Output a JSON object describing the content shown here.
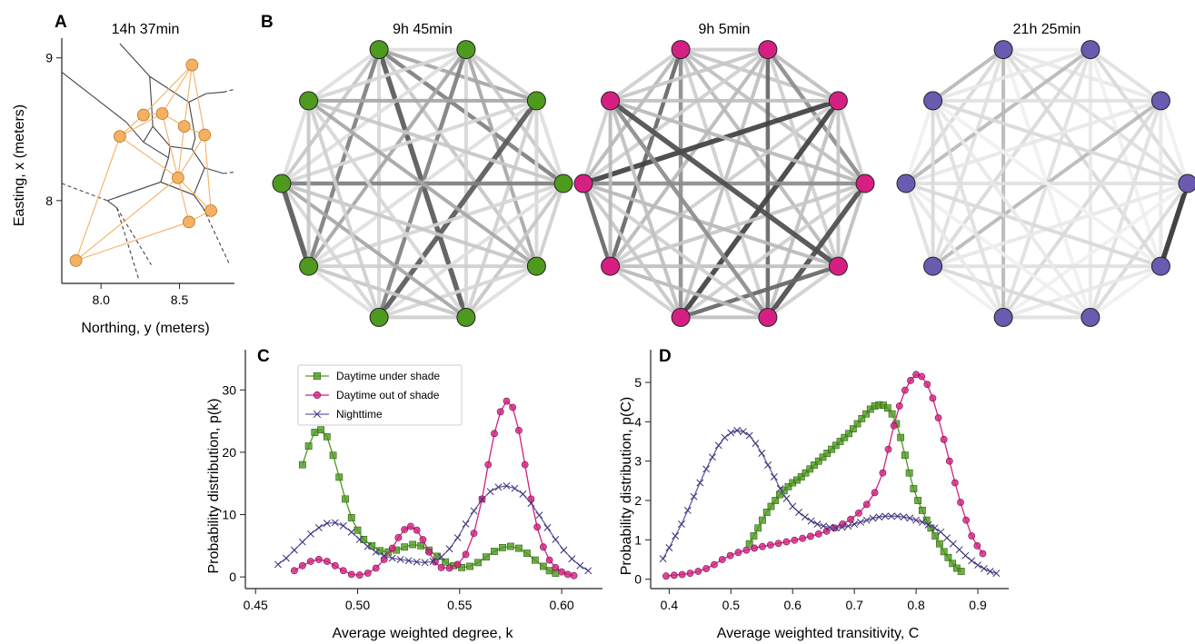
{
  "panel_letters": {
    "a": "A",
    "b": "B",
    "c": "C",
    "d": "D"
  },
  "colors": {
    "shade": "#4e9a1f",
    "sun": "#d61f82",
    "night": "#6a5bb0",
    "map_node": "#f5b062",
    "map_edge": "#f5b062"
  },
  "icons": {
    "shade_marker": "square",
    "sun_marker": "circle",
    "night_marker": "x"
  },
  "chart_data": [
    {
      "type": "scatter",
      "panel": "A",
      "title": "14h 37min",
      "xlabel": "Northing, y (meters)",
      "ylabel": "Easting, x (meters)",
      "xlim": [
        7.75,
        8.85
      ],
      "ylim": [
        7.42,
        9.1
      ],
      "xticks": [
        "8.0",
        "8.5"
      ],
      "yticks": [
        "8",
        "9"
      ],
      "points": [
        {
          "x": 8.58,
          "y": 8.95
        },
        {
          "x": 8.27,
          "y": 8.6
        },
        {
          "x": 8.39,
          "y": 8.61
        },
        {
          "x": 8.12,
          "y": 8.45
        },
        {
          "x": 8.53,
          "y": 8.52
        },
        {
          "x": 8.66,
          "y": 8.46
        },
        {
          "x": 8.49,
          "y": 8.16
        },
        {
          "x": 8.7,
          "y": 7.93
        },
        {
          "x": 8.56,
          "y": 7.85
        },
        {
          "x": 7.84,
          "y": 7.58
        }
      ],
      "delaunay_edges": [
        [
          0,
          1
        ],
        [
          0,
          2
        ],
        [
          0,
          4
        ],
        [
          0,
          5
        ],
        [
          1,
          2
        ],
        [
          1,
          3
        ],
        [
          2,
          3
        ],
        [
          2,
          4
        ],
        [
          3,
          6
        ],
        [
          3,
          9
        ],
        [
          2,
          6
        ],
        [
          4,
          6
        ],
        [
          4,
          5
        ],
        [
          5,
          6
        ],
        [
          5,
          7
        ],
        [
          6,
          7
        ],
        [
          6,
          8
        ],
        [
          7,
          8
        ],
        [
          8,
          9
        ],
        [
          6,
          9
        ]
      ],
      "voronoi_solid": [
        [
          [
            8.12,
            9.1
          ],
          [
            8.31,
            8.87
          ]
        ],
        [
          [
            8.31,
            8.87
          ],
          [
            8.56,
            8.69
          ]
        ],
        [
          [
            8.56,
            8.69
          ],
          [
            8.67,
            8.75
          ]
        ],
        [
          [
            8.31,
            8.87
          ],
          [
            8.33,
            8.52
          ]
        ],
        [
          [
            7.75,
            8.9
          ],
          [
            8.16,
            8.55
          ]
        ],
        [
          [
            8.16,
            8.55
          ],
          [
            8.27,
            8.41
          ]
        ],
        [
          [
            8.27,
            8.41
          ],
          [
            8.33,
            8.52
          ]
        ],
        [
          [
            8.33,
            8.52
          ],
          [
            8.44,
            8.38
          ]
        ],
        [
          [
            8.27,
            8.41
          ],
          [
            8.43,
            8.3
          ]
        ],
        [
          [
            8.43,
            8.3
          ],
          [
            8.44,
            8.38
          ]
        ],
        [
          [
            8.44,
            8.38
          ],
          [
            8.58,
            8.36
          ]
        ],
        [
          [
            8.58,
            8.36
          ],
          [
            8.6,
            8.44
          ]
        ],
        [
          [
            8.6,
            8.44
          ],
          [
            8.56,
            8.69
          ]
        ],
        [
          [
            8.58,
            8.36
          ],
          [
            8.66,
            8.23
          ]
        ],
        [
          [
            8.43,
            8.3
          ],
          [
            8.38,
            8.13
          ]
        ],
        [
          [
            8.38,
            8.13
          ],
          [
            8.04,
            8.0
          ]
        ],
        [
          [
            8.38,
            8.13
          ],
          [
            8.59,
            8.04
          ]
        ],
        [
          [
            8.59,
            8.04
          ],
          [
            8.66,
            8.23
          ]
        ],
        [
          [
            8.66,
            8.23
          ],
          [
            8.78,
            8.19
          ]
        ],
        [
          [
            8.59,
            8.04
          ],
          [
            8.65,
            7.95
          ]
        ],
        [
          [
            8.04,
            8.0
          ],
          [
            8.1,
            7.95
          ]
        ],
        [
          [
            8.67,
            8.75
          ],
          [
            8.78,
            8.76
          ]
        ]
      ],
      "voronoi_dashed": [
        [
          [
            7.75,
            8.12
          ],
          [
            8.04,
            8.0
          ]
        ],
        [
          [
            8.1,
            7.95
          ],
          [
            8.32,
            7.55
          ]
        ],
        [
          [
            8.1,
            7.95
          ],
          [
            8.24,
            7.45
          ]
        ],
        [
          [
            8.65,
            7.95
          ],
          [
            8.82,
            7.55
          ]
        ],
        [
          [
            8.78,
            8.19
          ],
          [
            8.85,
            8.2
          ]
        ],
        [
          [
            8.78,
            8.76
          ],
          [
            8.85,
            8.78
          ]
        ]
      ]
    },
    {
      "type": "network",
      "panel": "B",
      "graphs": [
        {
          "title": "9h 45min",
          "node_color": "#4e9a1f",
          "edge_gray": {
            "0-5": 35,
            "7-8": 35,
            "2-6": 35,
            "0-3": 50,
            "0-7": 50,
            "1-6": 50,
            "3-8": 50,
            "0-2": 65,
            "1-4": 65,
            "4-9": 65,
            "5-8": 65,
            "1-7": 65,
            "2-9": 65
          },
          "default_gray": 78
        },
        {
          "title": "9h 5min",
          "node_color": "#d61f82",
          "edge_gray": {
            "2-8": 25,
            "2-6": 25,
            "4-9": 30,
            "3-5": 30,
            "0-7": 40,
            "4-6": 40,
            "1-5": 40,
            "7-8": 40,
            "1-3": 55,
            "0-6": 55,
            "5-9": 55,
            "3-8": 55
          },
          "default_gray": 72
        },
        {
          "title": "21h 25min",
          "node_color": "#6a5bb0",
          "edge_gray": {
            "3-4": 20,
            "2-7": 72,
            "0-6": 72,
            "0-9": 72,
            "1-8": 72
          },
          "default_gray": 85
        }
      ]
    },
    {
      "type": "line",
      "panel": "C",
      "xlabel": "Average weighted degree, k",
      "ylabel": "Probability distribution, p(k)",
      "xlim": [
        0.445,
        0.62
      ],
      "ylim": [
        -1,
        35
      ],
      "xticks": [
        0.45,
        0.5,
        0.55,
        0.6
      ],
      "yticks": [
        0,
        10,
        20,
        30
      ],
      "legend_placement": "top-left",
      "series": [
        {
          "name": "Daytime under shade",
          "marker": "square",
          "x": [
            0.473,
            0.476,
            0.479,
            0.482,
            0.485,
            0.488,
            0.491,
            0.494,
            0.497,
            0.5,
            0.503,
            0.507,
            0.511,
            0.515,
            0.519,
            0.523,
            0.527,
            0.531,
            0.535,
            0.539,
            0.543,
            0.547,
            0.551,
            0.555,
            0.559,
            0.563,
            0.567,
            0.571,
            0.575,
            0.579,
            0.583,
            0.587,
            0.591,
            0.594,
            0.597
          ],
          "y": [
            18,
            21,
            23.2,
            23.6,
            22.5,
            19.5,
            16,
            12.5,
            9.5,
            7.5,
            6,
            5,
            4.2,
            4.0,
            4.3,
            4.8,
            5.2,
            5.0,
            4.3,
            3.3,
            2.4,
            1.8,
            1.5,
            1.7,
            2.3,
            3.2,
            4.1,
            4.7,
            4.9,
            4.6,
            3.8,
            2.7,
            1.7,
            1.0,
            0.6
          ]
        },
        {
          "name": "Daytime out of shade",
          "marker": "circle",
          "x": [
            0.469,
            0.473,
            0.477,
            0.481,
            0.485,
            0.489,
            0.493,
            0.497,
            0.501,
            0.505,
            0.509,
            0.513,
            0.517,
            0.52,
            0.523,
            0.526,
            0.529,
            0.532,
            0.535,
            0.538,
            0.541,
            0.545,
            0.549,
            0.553,
            0.557,
            0.561,
            0.564,
            0.567,
            0.57,
            0.573,
            0.576,
            0.579,
            0.582,
            0.585,
            0.588,
            0.591,
            0.594,
            0.597,
            0.6,
            0.603,
            0.606
          ],
          "y": [
            1.0,
            1.8,
            2.5,
            2.8,
            2.5,
            1.8,
            1.0,
            0.4,
            0.3,
            0.6,
            1.4,
            2.8,
            4.6,
            6.3,
            7.6,
            8.1,
            7.5,
            6.0,
            4.0,
            2.4,
            1.5,
            1.4,
            2.0,
            3.6,
            7.0,
            12.5,
            18,
            23,
            26.5,
            28.2,
            27.2,
            23.5,
            18,
            12.5,
            8,
            4.8,
            2.7,
            1.5,
            0.8,
            0.4,
            0.2
          ]
        },
        {
          "name": "Nighttime",
          "marker": "x",
          "x": [
            0.461,
            0.465,
            0.469,
            0.473,
            0.477,
            0.481,
            0.485,
            0.489,
            0.493,
            0.497,
            0.501,
            0.505,
            0.509,
            0.513,
            0.517,
            0.521,
            0.525,
            0.529,
            0.533,
            0.537,
            0.541,
            0.545,
            0.549,
            0.553,
            0.557,
            0.561,
            0.565,
            0.569,
            0.573,
            0.577,
            0.581,
            0.585,
            0.589,
            0.593,
            0.597,
            0.601,
            0.605,
            0.609,
            0.613
          ],
          "y": [
            2.0,
            3.0,
            4.3,
            5.6,
            6.9,
            7.9,
            8.6,
            8.7,
            8.2,
            7.2,
            6.0,
            4.9,
            4.0,
            3.4,
            3.0,
            2.8,
            2.6,
            2.4,
            2.3,
            2.5,
            3.2,
            4.5,
            6.3,
            8.5,
            10.6,
            12.4,
            13.7,
            14.4,
            14.6,
            14.2,
            13.3,
            11.8,
            9.9,
            7.9,
            6.0,
            4.3,
            2.9,
            1.8,
            1.0
          ]
        }
      ]
    },
    {
      "type": "line",
      "panel": "D",
      "xlabel": "Average weighted transitivity, C",
      "ylabel": "Probability distribution, p(C)",
      "xlim": [
        0.37,
        0.95
      ],
      "ylim": [
        -0.1,
        5.6
      ],
      "xticks": [
        0.4,
        0.5,
        0.6,
        0.7,
        0.8,
        0.9
      ],
      "yticks": [
        0,
        1,
        2,
        3,
        4,
        5
      ],
      "series": [
        {
          "name": "Daytime under shade",
          "marker": "square",
          "x": [
            0.53,
            0.537,
            0.544,
            0.551,
            0.558,
            0.565,
            0.572,
            0.579,
            0.586,
            0.593,
            0.6,
            0.607,
            0.614,
            0.621,
            0.628,
            0.635,
            0.642,
            0.649,
            0.656,
            0.663,
            0.67,
            0.677,
            0.684,
            0.691,
            0.698,
            0.705,
            0.712,
            0.719,
            0.726,
            0.733,
            0.74,
            0.747,
            0.754,
            0.761,
            0.768,
            0.775,
            0.782,
            0.789,
            0.796,
            0.803,
            0.81,
            0.817,
            0.824,
            0.831,
            0.838,
            0.845,
            0.852,
            0.859,
            0.866,
            0.873
          ],
          "y": [
            0.9,
            1.1,
            1.3,
            1.5,
            1.7,
            1.85,
            2.0,
            2.15,
            2.25,
            2.35,
            2.45,
            2.52,
            2.6,
            2.7,
            2.8,
            2.9,
            3.0,
            3.1,
            3.2,
            3.3,
            3.4,
            3.5,
            3.6,
            3.7,
            3.82,
            3.95,
            4.08,
            4.2,
            4.32,
            4.4,
            4.43,
            4.42,
            4.35,
            4.2,
            3.95,
            3.6,
            3.15,
            2.7,
            2.3,
            2.0,
            1.75,
            1.5,
            1.3,
            1.1,
            0.9,
            0.7,
            0.55,
            0.4,
            0.28,
            0.2
          ]
        },
        {
          "name": "Daytime out of shade",
          "marker": "circle",
          "x": [
            0.395,
            0.408,
            0.421,
            0.434,
            0.447,
            0.46,
            0.473,
            0.486,
            0.499,
            0.512,
            0.525,
            0.538,
            0.551,
            0.564,
            0.577,
            0.59,
            0.603,
            0.616,
            0.629,
            0.642,
            0.655,
            0.668,
            0.681,
            0.694,
            0.707,
            0.72,
            0.733,
            0.746,
            0.755,
            0.764,
            0.773,
            0.782,
            0.791,
            0.8,
            0.809,
            0.818,
            0.827,
            0.836,
            0.845,
            0.854,
            0.863,
            0.872,
            0.881,
            0.89,
            0.899,
            0.908
          ],
          "y": [
            0.08,
            0.1,
            0.12,
            0.15,
            0.2,
            0.27,
            0.37,
            0.5,
            0.6,
            0.68,
            0.74,
            0.79,
            0.83,
            0.87,
            0.91,
            0.95,
            0.99,
            1.04,
            1.09,
            1.15,
            1.22,
            1.3,
            1.4,
            1.52,
            1.68,
            1.9,
            2.2,
            2.7,
            3.3,
            3.9,
            4.4,
            4.8,
            5.05,
            5.2,
            5.15,
            4.95,
            4.6,
            4.1,
            3.55,
            3.0,
            2.45,
            1.95,
            1.5,
            1.1,
            0.85,
            0.65
          ]
        },
        {
          "name": "Nighttime",
          "marker": "x",
          "x": [
            0.39,
            0.4,
            0.41,
            0.42,
            0.43,
            0.44,
            0.45,
            0.46,
            0.47,
            0.48,
            0.49,
            0.5,
            0.51,
            0.52,
            0.53,
            0.54,
            0.55,
            0.56,
            0.57,
            0.58,
            0.59,
            0.6,
            0.61,
            0.62,
            0.63,
            0.64,
            0.65,
            0.66,
            0.67,
            0.68,
            0.69,
            0.7,
            0.71,
            0.72,
            0.73,
            0.74,
            0.75,
            0.76,
            0.77,
            0.78,
            0.79,
            0.8,
            0.81,
            0.82,
            0.83,
            0.84,
            0.85,
            0.86,
            0.87,
            0.88,
            0.89,
            0.9,
            0.91,
            0.92,
            0.93
          ],
          "y": [
            0.52,
            0.8,
            1.1,
            1.4,
            1.75,
            2.1,
            2.45,
            2.8,
            3.1,
            3.4,
            3.6,
            3.72,
            3.78,
            3.75,
            3.65,
            3.45,
            3.2,
            2.9,
            2.6,
            2.3,
            2.05,
            1.85,
            1.7,
            1.58,
            1.48,
            1.4,
            1.35,
            1.32,
            1.3,
            1.32,
            1.35,
            1.4,
            1.45,
            1.5,
            1.55,
            1.58,
            1.6,
            1.6,
            1.6,
            1.58,
            1.55,
            1.5,
            1.45,
            1.38,
            1.3,
            1.2,
            1.05,
            0.9,
            0.75,
            0.6,
            0.47,
            0.36,
            0.27,
            0.2,
            0.15
          ]
        }
      ]
    }
  ]
}
